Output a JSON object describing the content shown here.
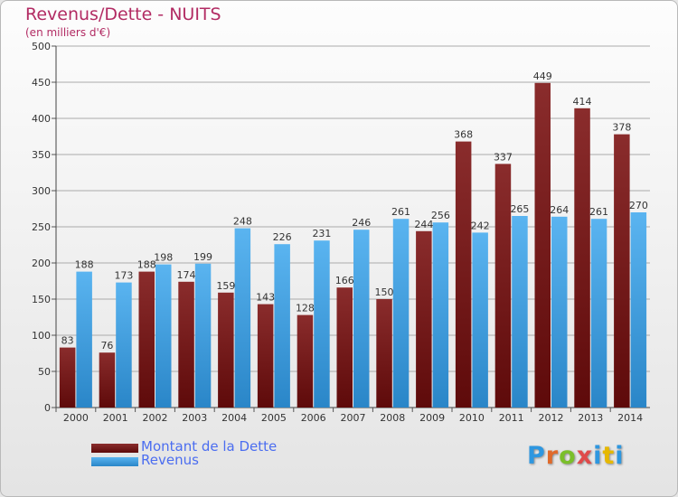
{
  "title": "Revenus/Dette - NUITS",
  "subtitle": "(en milliers d'€)",
  "logo": {
    "text": "Proxiti",
    "colors": [
      "#2e97e0",
      "#e06a2a",
      "#7bbf2a",
      "#e04a4a",
      "#2e97e0",
      "#e6b800",
      "#2e97e0"
    ]
  },
  "chart_data": {
    "type": "bar",
    "categories": [
      "2000",
      "2001",
      "2002",
      "2003",
      "2004",
      "2005",
      "2006",
      "2007",
      "2008",
      "2009",
      "2010",
      "2011",
      "2012",
      "2013",
      "2014"
    ],
    "series": [
      {
        "name": "Montant de la Dette",
        "color": "#7a1c1c",
        "values": [
          83,
          76,
          188,
          174,
          159,
          143,
          128,
          166,
          150,
          244,
          368,
          337,
          449,
          414,
          378
        ]
      },
      {
        "name": "Revenus",
        "color": "#42a3e6",
        "values": [
          188,
          173,
          198,
          199,
          248,
          226,
          231,
          246,
          261,
          256,
          242,
          265,
          264,
          261,
          270
        ]
      }
    ],
    "ylim": [
      0,
      500
    ],
    "yticks": [
      0,
      50,
      100,
      150,
      200,
      250,
      300,
      350,
      400,
      450,
      500
    ],
    "grid": true,
    "legend": "bottom-left"
  }
}
